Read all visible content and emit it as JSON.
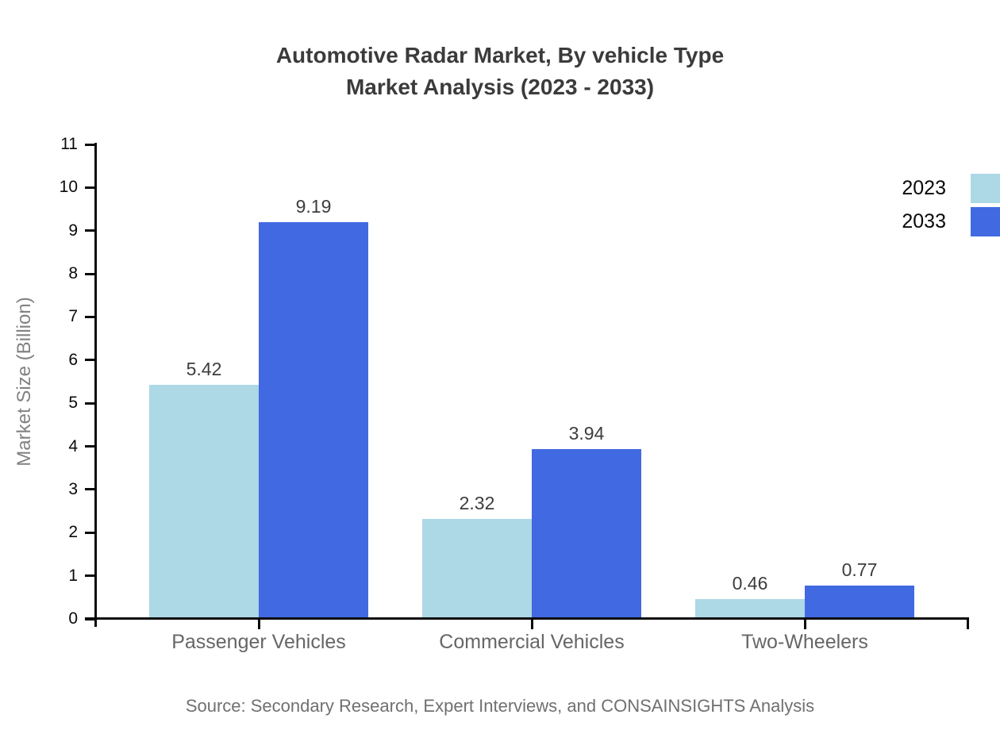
{
  "title": {
    "line1": "Automotive Radar Market, By vehicle Type",
    "line2": "Market Analysis (2023 - 2033)"
  },
  "source": "Source: Secondary Research, Expert Interviews, and CONSAINSIGHTS Analysis",
  "colors": {
    "series_2023": "#ADD8E6",
    "series_2033": "#4169E1",
    "axis": "#0a0a0a",
    "title_text": "#3b3b3b",
    "category_text": "#666666",
    "muted_text": "#707070"
  },
  "chart_data": {
    "type": "bar",
    "title": "Automotive Radar Market, By vehicle Type — Market Analysis (2023 - 2033)",
    "categories": [
      "Passenger Vehicles",
      "Commercial Vehicles",
      "Two-Wheelers"
    ],
    "series": [
      {
        "name": "2023",
        "color": "#ADD8E6",
        "values": [
          5.42,
          2.32,
          0.46
        ]
      },
      {
        "name": "2033",
        "color": "#4169E1",
        "values": [
          9.19,
          3.94,
          0.77
        ]
      }
    ],
    "value_labels": [
      "5.42",
      "9.19",
      "2.32",
      "3.94",
      "0.46",
      "0.77"
    ],
    "xlabel": "",
    "ylabel": "Market Size (Billion)",
    "ylim": [
      0,
      11
    ],
    "ytick_step": 1,
    "grid": false,
    "legend_position": "top-right",
    "legend_entries": [
      "2023",
      "2033"
    ]
  }
}
